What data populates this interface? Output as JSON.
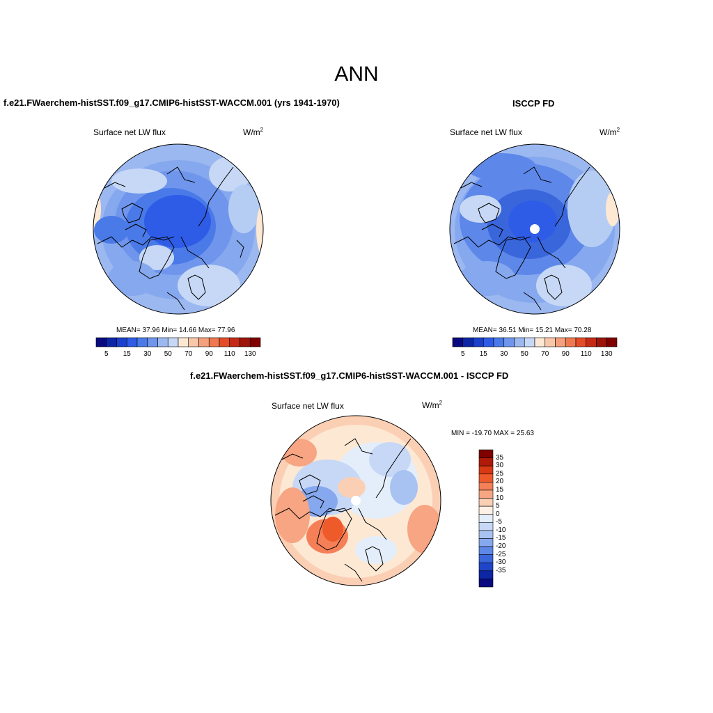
{
  "page": {
    "title": "ANN"
  },
  "panels": [
    {
      "title": "f.e21.FWaerchem-histSST.f09_g17.CMIP6-histSST-WACCM.001 (yrs 1941-1970)",
      "variable": "Surface net LW flux",
      "units": "W/m",
      "units_exp": "2",
      "stats": "MEAN=  37.96  Min=  14.66  Max=  77.96",
      "colorbar": {
        "colors": [
          "#0a0a80",
          "#0d26a6",
          "#1a40cc",
          "#2e5ce6",
          "#4a7ae8",
          "#6f96ec",
          "#9cb8f0",
          "#c6d8f5",
          "#fde8d4",
          "#f9c8a8",
          "#f5a07c",
          "#ef7850",
          "#e44c28",
          "#c42a14",
          "#9c140a",
          "#800000"
        ],
        "labels": [
          "5",
          "15",
          "30",
          "50",
          "70",
          "90",
          "110",
          "130"
        ]
      }
    },
    {
      "title": "ISCCP FD",
      "variable": "Surface net LW flux",
      "units": "W/m",
      "units_exp": "2",
      "stats": "MEAN=  36.51  Min=  15.21  Max=  70.28",
      "colorbar": {
        "colors": [
          "#0a0a80",
          "#0d26a6",
          "#1a40cc",
          "#2e5ce6",
          "#4a7ae8",
          "#6f96ec",
          "#9cb8f0",
          "#c6d8f5",
          "#fde8d4",
          "#f9c8a8",
          "#f5a07c",
          "#ef7850",
          "#e44c28",
          "#c42a14",
          "#9c140a",
          "#800000"
        ],
        "labels": [
          "5",
          "15",
          "30",
          "50",
          "70",
          "90",
          "110",
          "130"
        ]
      }
    },
    {
      "title": "f.e21.FWaerchem-histSST.f09_g17.CMIP6-histSST-WACCM.001 - ISCCP FD",
      "variable": "Surface net LW flux",
      "units": "W/m",
      "units_exp": "2",
      "stats": "MIN = -19.70 MAX =  25.63",
      "colorbar": {
        "colors": [
          "#800000",
          "#b01a08",
          "#d93a14",
          "#ef5a2a",
          "#f58058",
          "#f7a582",
          "#fbcfb4",
          "#fdf0e4",
          "#e4eefa",
          "#c6d8f5",
          "#a8c2f2",
          "#86a8ee",
          "#5d88ea",
          "#3a66dc",
          "#1f46c8",
          "#0d26a6",
          "#0a0a80"
        ],
        "labels": [
          "35",
          "30",
          "25",
          "20",
          "15",
          "10",
          "5",
          "0",
          "-5",
          "-10",
          "-15",
          "-20",
          "-25",
          "-30",
          "-35"
        ]
      }
    }
  ]
}
